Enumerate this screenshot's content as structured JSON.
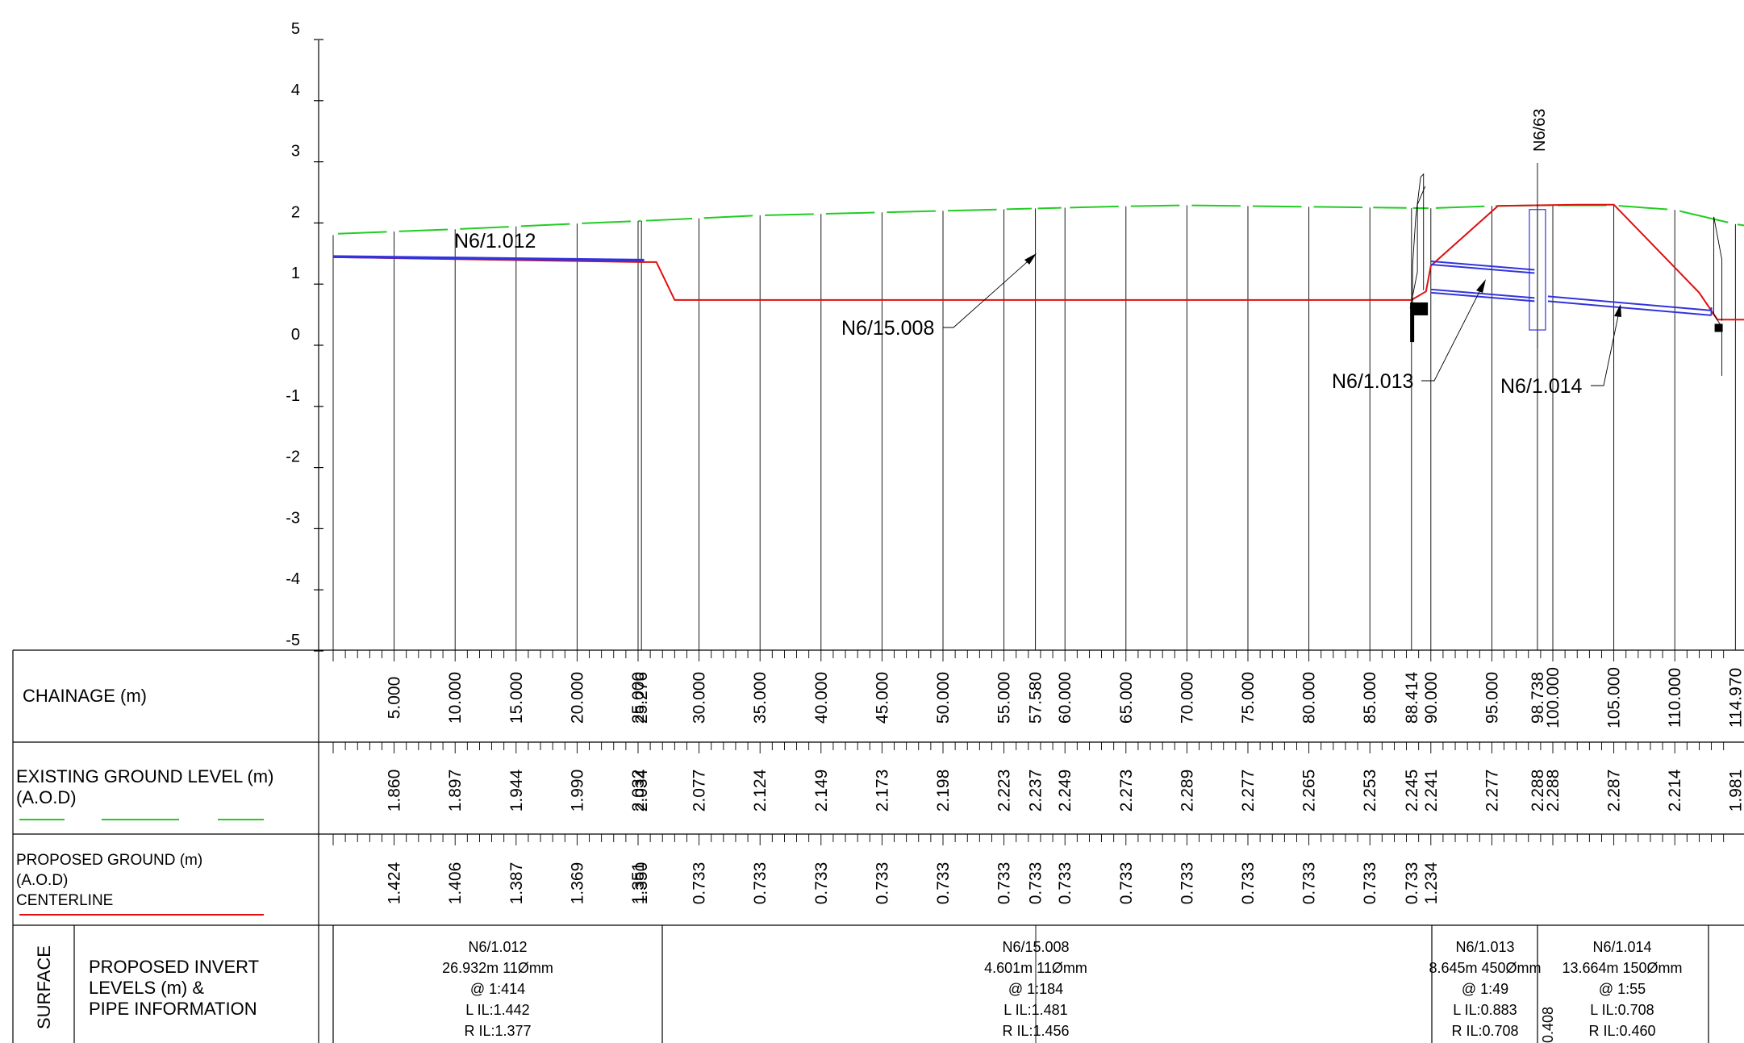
{
  "axis": {
    "y_ticks": [
      "5",
      "4",
      "3",
      "2",
      "1",
      "0",
      "-1",
      "-2",
      "-3",
      "-4",
      "-5"
    ]
  },
  "table": {
    "chainage": {
      "label": "CHAINAGE (m)",
      "values": [
        "5.000",
        "10.000",
        "15.000",
        "20.000",
        "25.000",
        "25.276",
        "30.000",
        "35.000",
        "40.000",
        "45.000",
        "50.000",
        "55.000",
        "57.580",
        "60.000",
        "65.000",
        "70.000",
        "75.000",
        "80.000",
        "85.000",
        "88.414",
        "90.000",
        "95.000",
        "98.738",
        "100.000",
        "105.000",
        "110.000",
        "114.970"
      ]
    },
    "existing": {
      "label_line1": "EXISTING GROUND LEVEL (m)",
      "label_line2": "(A.O.D)",
      "values": [
        "1.860",
        "1.897",
        "1.944",
        "1.990",
        "2.032",
        "2.034",
        "2.077",
        "2.124",
        "2.149",
        "2.173",
        "2.198",
        "2.223",
        "2.237",
        "2.249",
        "2.273",
        "2.289",
        "2.277",
        "2.265",
        "2.253",
        "2.245",
        "2.241",
        "2.277",
        "2.288",
        "2.288",
        "2.287",
        "2.214",
        "1.981"
      ]
    },
    "proposed": {
      "label_line1": "PROPOSED GROUND (m)",
      "label_line2": "(A.O.D)",
      "label_line3": "CENTERLINE",
      "values": [
        "1.424",
        "1.406",
        "1.387",
        "1.369",
        "1.351",
        "1.350",
        "0.733",
        "0.733",
        "0.733",
        "0.733",
        "0.733",
        "0.733",
        "0.733",
        "0.733",
        "0.733",
        "0.733",
        "0.733",
        "0.733",
        "0.733",
        "0.733",
        "1.234",
        "",
        "",
        "",
        "",
        "",
        ""
      ]
    },
    "invert": {
      "side_label": "SURFACE",
      "label_line1": "PROPOSED INVERT",
      "label_line2": "LEVELS (m) &",
      "label_line3": "PIPE INFORMATION",
      "extra_value": "0.408",
      "pipes": [
        {
          "ref": "N6/1.012",
          "length": "26.932m 11Ømm",
          "gradient": "@ 1:414",
          "lil": "L IL:1.442",
          "ril": "R IL:1.377"
        },
        {
          "ref": "N6/15.008",
          "length": "4.601m 11Ømm",
          "gradient": "@ 1:184",
          "lil": "L IL:1.481",
          "ril": "R IL:1.456"
        },
        {
          "ref": "N6/1.013",
          "length": "8.645m 450Ømm",
          "gradient": "@ 1:49",
          "lil": "L IL:0.883",
          "ril": "R IL:0.708"
        },
        {
          "ref": "N6/1.014",
          "length": "13.664m 150Ømm",
          "gradient": "@ 1:55",
          "lil": "L IL:0.708",
          "ril": "R IL:0.460"
        }
      ]
    }
  },
  "labels": {
    "pipe_1012": "N6/1.012",
    "pipe_15008": "N6/15.008",
    "pipe_1013": "N6/1.013",
    "pipe_1014": "N6/1.014",
    "manhole": "N6/63"
  },
  "colors": {
    "existing_ground": "#22cc22",
    "proposed_ground": "#dd1111",
    "pipe": "#3333dd"
  }
}
